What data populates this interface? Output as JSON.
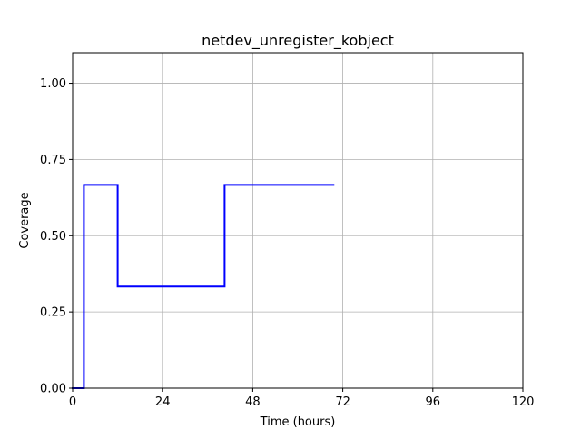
{
  "chart_data": {
    "type": "line",
    "title": "netdev_unregister_kobject",
    "xlabel": "Time (hours)",
    "ylabel": "Coverage",
    "xlim": [
      0,
      120
    ],
    "ylim": [
      0,
      1.1
    ],
    "xticks": [
      0,
      24,
      48,
      72,
      96,
      120
    ],
    "yticks": [
      0.0,
      0.25,
      0.5,
      0.75,
      1.0
    ],
    "xtick_labels": [
      "0",
      "24",
      "48",
      "72",
      "96",
      "120"
    ],
    "ytick_labels": [
      "0.00",
      "0.25",
      "0.50",
      "0.75",
      "1.00"
    ],
    "grid": true,
    "series": [
      {
        "color": "#0000ff",
        "step": "post",
        "x": [
          0,
          3,
          12,
          40.5,
          69.5
        ],
        "y": [
          0,
          0.6667,
          0.3333,
          0.6667,
          0.6667
        ]
      }
    ]
  }
}
